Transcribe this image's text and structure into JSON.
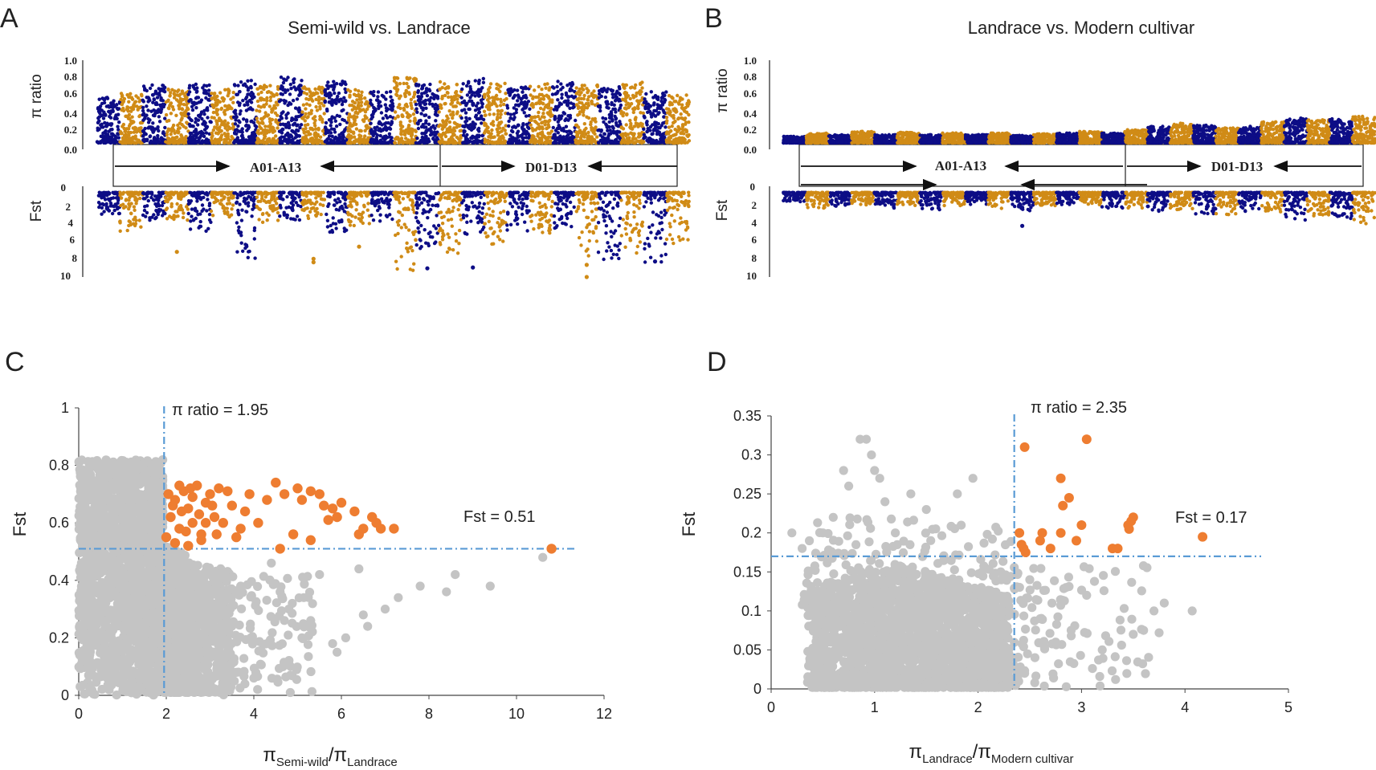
{
  "colors": {
    "blue": "#0d0d86",
    "gold": "#d08b16",
    "gray": "#c4c4c4",
    "orange": "#ee7d31",
    "threshold": "#5a9bd5"
  },
  "chart_data": [
    {
      "panel": "A",
      "type": "scatter",
      "title": "Semi-wild vs. Landrace",
      "top_ylabel": "π ratio",
      "top_ticks": [
        "1.0",
        "0.8",
        "0.6",
        "0.4",
        "0.2",
        "0.0"
      ],
      "bottom_ylabel": "Fst",
      "bottom_ticks": [
        "0",
        "2",
        "4",
        "6",
        "8",
        "10"
      ],
      "ylim_top": [
        0,
        1.0
      ],
      "ylim_bottom": [
        0,
        10
      ],
      "genome_labels": [
        "A01-A13",
        "D01-D13"
      ],
      "chromosomes_per_subgenome": 13,
      "chromosome_colors": [
        "blue",
        "gold"
      ],
      "pi_envelope": [
        0.55,
        0.6,
        0.7,
        0.65,
        0.72,
        0.65,
        0.78,
        0.7,
        0.8,
        0.68,
        0.75,
        0.66,
        0.62,
        0.8,
        0.72,
        0.75,
        0.78,
        0.72,
        0.68,
        0.72,
        0.75,
        0.7,
        0.68,
        0.74,
        0.62,
        0.58
      ],
      "fst_envelope": [
        2.5,
        4.5,
        3.5,
        3.2,
        4.5,
        3.0,
        7.8,
        3.5,
        4.0,
        3.0,
        5.0,
        4.0,
        3.5,
        9.5,
        6.5,
        7.0,
        5.5,
        6.0,
        4.5,
        5.0,
        4.5,
        7.5,
        8.0,
        7.0,
        8.5,
        6.0
      ],
      "fst_outliers": [
        {
          "chr": 3,
          "value": 7.1
        },
        {
          "chr": 9,
          "value": 7.9
        },
        {
          "chr": 9,
          "value": 8.3
        },
        {
          "chr": 11,
          "value": 6.5
        },
        {
          "chr": 14,
          "value": 9.0
        },
        {
          "chr": 16,
          "value": 8.9
        },
        {
          "chr": 21,
          "value": 10.0
        },
        {
          "chr": 21,
          "value": 8.6
        },
        {
          "chr": 24,
          "value": 8.2
        }
      ]
    },
    {
      "panel": "B",
      "type": "scatter",
      "title": "Landrace vs. Modern cultivar",
      "top_ylabel": "π ratio",
      "top_ticks": [
        "1.0",
        "0.8",
        "0.6",
        "0.4",
        "0.2",
        "0.0"
      ],
      "bottom_ylabel": "Fst",
      "bottom_ticks": [
        "0",
        "2",
        "4",
        "6",
        "8",
        "10"
      ],
      "ylim_top": [
        0,
        1.0
      ],
      "ylim_bottom": [
        0,
        10
      ],
      "genome_labels": [
        "A01-A13",
        "D01-D13"
      ],
      "chromosomes_per_subgenome": 13,
      "chromosome_colors": [
        "blue",
        "gold"
      ],
      "pi_envelope": [
        0.08,
        0.12,
        0.1,
        0.14,
        0.1,
        0.13,
        0.1,
        0.12,
        0.1,
        0.12,
        0.09,
        0.11,
        0.12,
        0.14,
        0.12,
        0.16,
        0.2,
        0.24,
        0.22,
        0.18,
        0.2,
        0.26,
        0.3,
        0.28,
        0.3,
        0.33
      ],
      "fst_envelope": [
        1.2,
        1.8,
        1.6,
        1.5,
        1.8,
        1.5,
        2.0,
        1.6,
        1.4,
        2.0,
        2.2,
        1.6,
        1.5,
        1.5,
        1.8,
        1.8,
        2.2,
        2.0,
        2.5,
        2.6,
        2.2,
        2.8,
        3.2,
        2.8,
        3.0,
        3.6
      ],
      "fst_outliers": [
        {
          "chr": 10,
          "value": 4.1
        }
      ]
    },
    {
      "panel": "C",
      "type": "scatter",
      "xlabel_main": "π",
      "xlabel_sub1": "Semi-wild",
      "xlabel_sep": "/π",
      "xlabel_sub2": "Landrace",
      "ylabel": "Fst",
      "xlim": [
        0,
        12
      ],
      "ylim": [
        0,
        1
      ],
      "xticks": [
        0,
        2,
        4,
        6,
        8,
        10,
        12
      ],
      "yticks": [
        0,
        0.2,
        0.4,
        0.6,
        0.8,
        1
      ],
      "threshold_x": 1.95,
      "threshold_y": 0.51,
      "threshold_x_label": "π ratio = 1.95",
      "threshold_y_label": "Fst = 0.51",
      "selected_points": [
        [
          2.0,
          0.55
        ],
        [
          2.1,
          0.62
        ],
        [
          2.2,
          0.68
        ],
        [
          2.3,
          0.58
        ],
        [
          2.4,
          0.71
        ],
        [
          2.5,
          0.65
        ],
        [
          2.6,
          0.6
        ],
        [
          2.7,
          0.73
        ],
        [
          2.8,
          0.56
        ],
        [
          2.9,
          0.67
        ],
        [
          3.0,
          0.7
        ],
        [
          3.1,
          0.62
        ],
        [
          3.2,
          0.72
        ],
        [
          2.2,
          0.53
        ],
        [
          2.5,
          0.52
        ],
        [
          2.8,
          0.54
        ],
        [
          3.3,
          0.6
        ],
        [
          3.5,
          0.66
        ],
        [
          3.6,
          0.55
        ],
        [
          3.8,
          0.64
        ],
        [
          3.9,
          0.7
        ],
        [
          4.1,
          0.6
        ],
        [
          4.3,
          0.68
        ],
        [
          4.5,
          0.74
        ],
        [
          4.6,
          0.51
        ],
        [
          4.7,
          0.7
        ],
        [
          4.9,
          0.56
        ],
        [
          5.0,
          0.72
        ],
        [
          5.1,
          0.68
        ],
        [
          5.3,
          0.71
        ],
        [
          5.3,
          0.54
        ],
        [
          5.5,
          0.7
        ],
        [
          5.6,
          0.66
        ],
        [
          5.7,
          0.61
        ],
        [
          5.8,
          0.65
        ],
        [
          5.9,
          0.62
        ],
        [
          6.0,
          0.67
        ],
        [
          6.3,
          0.64
        ],
        [
          6.4,
          0.56
        ],
        [
          6.5,
          0.58
        ],
        [
          6.7,
          0.62
        ],
        [
          6.8,
          0.6
        ],
        [
          6.9,
          0.58
        ],
        [
          7.2,
          0.58
        ],
        [
          10.8,
          0.51
        ],
        [
          2.05,
          0.7
        ],
        [
          2.15,
          0.66
        ],
        [
          2.35,
          0.64
        ],
        [
          2.45,
          0.57
        ],
        [
          2.6,
          0.69
        ],
        [
          2.75,
          0.63
        ],
        [
          2.9,
          0.6
        ],
        [
          3.05,
          0.66
        ],
        [
          3.15,
          0.56
        ],
        [
          2.3,
          0.73
        ],
        [
          2.55,
          0.72
        ],
        [
          3.4,
          0.71
        ],
        [
          3.7,
          0.58
        ]
      ],
      "gray_highlights": [
        [
          9.4,
          0.38
        ],
        [
          8.6,
          0.42
        ],
        [
          8.4,
          0.36
        ],
        [
          7.8,
          0.38
        ],
        [
          7.3,
          0.34
        ],
        [
          6.4,
          0.44
        ],
        [
          5.5,
          0.42
        ],
        [
          4.8,
          0.3
        ],
        [
          3.7,
          0.38
        ],
        [
          3.3,
          0.14
        ],
        [
          2.8,
          0.05
        ],
        [
          5.3,
          0.26
        ],
        [
          5.8,
          0.18
        ],
        [
          6.1,
          0.2
        ],
        [
          6.6,
          0.24
        ],
        [
          4.4,
          0.46
        ],
        [
          10.6,
          0.48
        ],
        [
          4.0,
          0.06
        ],
        [
          3.6,
          0.08
        ],
        [
          5.9,
          0.15
        ],
        [
          6.5,
          0.28
        ],
        [
          4.6,
          0.36
        ],
        [
          5.1,
          0.2
        ],
        [
          7.0,
          0.3
        ]
      ]
    },
    {
      "panel": "D",
      "type": "scatter",
      "xlabel_main": "π",
      "xlabel_sub1": "Landrace",
      "xlabel_sep": "/π",
      "xlabel_sub2": "Modern cultivar",
      "ylabel": "Fst",
      "xlim": [
        0,
        5
      ],
      "ylim": [
        0,
        0.35
      ],
      "xticks": [
        0,
        1,
        2,
        3,
        4,
        5
      ],
      "yticks": [
        0,
        0.05,
        0.1,
        0.15,
        0.2,
        0.25,
        0.3,
        0.35
      ],
      "threshold_x": 2.35,
      "threshold_y": 0.17,
      "threshold_x_label": "π ratio = 2.35",
      "threshold_y_label": "Fst = 0.17",
      "selected_points": [
        [
          2.4,
          0.2
        ],
        [
          2.42,
          0.185
        ],
        [
          2.44,
          0.18
        ],
        [
          2.46,
          0.175
        ],
        [
          2.45,
          0.31
        ],
        [
          2.6,
          0.19
        ],
        [
          2.62,
          0.2
        ],
        [
          2.7,
          0.18
        ],
        [
          2.8,
          0.2
        ],
        [
          2.8,
          0.27
        ],
        [
          2.82,
          0.235
        ],
        [
          2.88,
          0.245
        ],
        [
          2.95,
          0.19
        ],
        [
          3.0,
          0.21
        ],
        [
          3.05,
          0.32
        ],
        [
          3.3,
          0.18
        ],
        [
          3.35,
          0.18
        ],
        [
          3.45,
          0.21
        ],
        [
          3.48,
          0.215
        ],
        [
          3.5,
          0.22
        ],
        [
          4.17,
          0.195
        ],
        [
          3.46,
          0.205
        ]
      ],
      "gray_highlights": [
        [
          0.86,
          0.32
        ],
        [
          0.92,
          0.32
        ],
        [
          0.97,
          0.3
        ],
        [
          1.0,
          0.28
        ],
        [
          1.1,
          0.24
        ],
        [
          1.2,
          0.2
        ],
        [
          1.35,
          0.25
        ],
        [
          1.5,
          0.23
        ],
        [
          1.8,
          0.25
        ],
        [
          1.95,
          0.27
        ],
        [
          0.7,
          0.28
        ],
        [
          0.75,
          0.26
        ],
        [
          0.5,
          0.2
        ],
        [
          0.3,
          0.18
        ],
        [
          0.2,
          0.2
        ],
        [
          3.7,
          0.1
        ],
        [
          3.8,
          0.11
        ],
        [
          4.07,
          0.1
        ],
        [
          3.6,
          0.075
        ],
        [
          3.75,
          0.072
        ],
        [
          3.5,
          0.07
        ],
        [
          3.2,
          0.05
        ],
        [
          2.9,
          0.075
        ],
        [
          2.75,
          0.06
        ],
        [
          2.5,
          0.14
        ],
        [
          2.6,
          0.09
        ],
        [
          2.85,
          0.13
        ],
        [
          3.05,
          0.12
        ],
        [
          2.55,
          0.04
        ],
        [
          2.45,
          0.02
        ],
        [
          0.6,
          0.22
        ],
        [
          1.05,
          0.27
        ]
      ]
    }
  ],
  "panel_labels": [
    "A",
    "B",
    "C",
    "D"
  ]
}
